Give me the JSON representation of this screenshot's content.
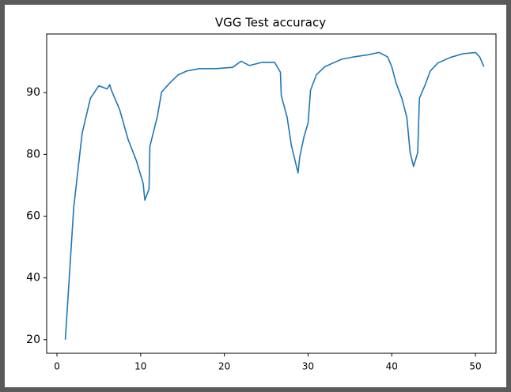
{
  "chart_data": {
    "type": "line",
    "title": "VGG Test accuracy",
    "x": [
      1,
      2,
      3,
      4,
      5,
      6,
      6.3,
      6.5,
      7.5,
      8.5,
      9.5,
      10.3,
      10.5,
      11,
      11.1,
      12,
      12.5,
      13.5,
      14.5,
      15.5,
      17,
      19,
      21,
      22,
      23,
      24.5,
      26,
      26.7,
      26.8,
      27.5,
      28,
      28.8,
      29,
      29.5,
      30,
      30.3,
      31,
      32,
      33,
      34,
      35.5,
      37,
      38.5,
      39.5,
      40,
      40.5,
      41.2,
      41.8,
      42.2,
      42.6,
      43.1,
      43.3,
      44,
      44.6,
      45.5,
      47,
      48.5,
      50,
      50.5,
      51
    ],
    "series": [
      {
        "name": "accuracy",
        "color": "#1f77b4",
        "values": [
          20,
          62.8,
          83.4,
          89.1,
          91.1,
          90.6,
          91.3,
          90.4,
          87.2,
          82.4,
          77.9,
          70.6,
          65.2,
          68.8,
          81.3,
          86.2,
          90.1,
          91.6,
          92.9,
          93.5,
          93.9,
          93.9,
          94.1,
          95.1,
          94.4,
          94.9,
          94.9,
          93.3,
          89.5,
          86,
          81.5,
          74,
          79.2,
          82.8,
          85.1,
          90.4,
          92.9,
          94.2,
          94.8,
          95.4,
          95.8,
          96.1,
          96.5,
          95.8,
          94.2,
          91.6,
          89.1,
          86,
          80.3,
          76.1,
          80.3,
          89.1,
          91.3,
          93.5,
          94.8,
          95.7,
          96.3,
          96.5,
          95.8,
          94.2
        ]
      }
    ],
    "xlim": [
      -1.23,
      52.45
    ],
    "xticks": [
      0,
      10,
      20,
      30,
      40,
      50
    ],
    "ylim": [
      15.6,
      99.5
    ],
    "yticks": [
      20,
      40,
      60,
      80,
      90
    ]
  }
}
